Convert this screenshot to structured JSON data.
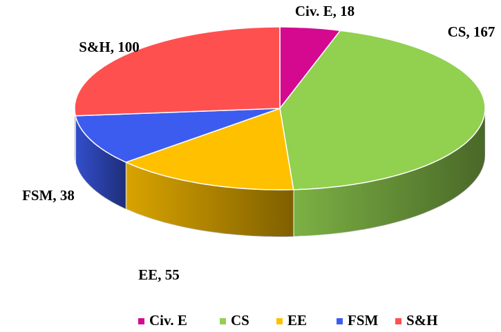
{
  "chart_data": {
    "type": "pie3d",
    "categories": [
      "Civ. E",
      "CS",
      "EE",
      "FSM",
      "S&H"
    ],
    "values": [
      18,
      167,
      55,
      38,
      100
    ],
    "value_labels": [
      "Civ. E, 18",
      "CS, 167",
      "EE, 55",
      "FSM, 38",
      "S&H, 100"
    ],
    "colors": [
      "#d4098f",
      "#92d050",
      "#ffc000",
      "#3c5cf0",
      "#ff5050"
    ],
    "legend": "bottom"
  }
}
